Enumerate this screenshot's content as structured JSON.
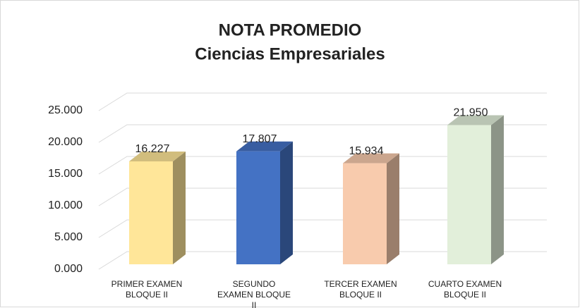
{
  "chart_data": {
    "type": "bar3d",
    "title": "NOTA PROMEDIO",
    "subtitle": "Ciencias Empresariales",
    "categories": [
      "PRIMER EXAMEN BLOQUE II",
      "SEGUNDO EXAMEN BLOQUE II",
      "TERCER EXAMEN BLOQUE II",
      "CUARTO EXAMEN BLOQUE II"
    ],
    "values": [
      16.227,
      17.807,
      15.934,
      21.95
    ],
    "value_labels": [
      "16.227",
      "17.807",
      "15.934",
      "21.950"
    ],
    "colors": [
      "#FFE699",
      "#4472C4",
      "#F8CBAD",
      "#E2EFDA"
    ],
    "ylim": [
      0,
      25
    ],
    "yticks": [
      {
        "value": 0,
        "label": "0.000"
      },
      {
        "value": 5,
        "label": "5.000"
      },
      {
        "value": 10,
        "label": "10.000"
      },
      {
        "value": 15,
        "label": "15.000"
      },
      {
        "value": 20,
        "label": "20.000"
      },
      {
        "value": 25,
        "label": "25.000"
      }
    ],
    "grid": true
  }
}
